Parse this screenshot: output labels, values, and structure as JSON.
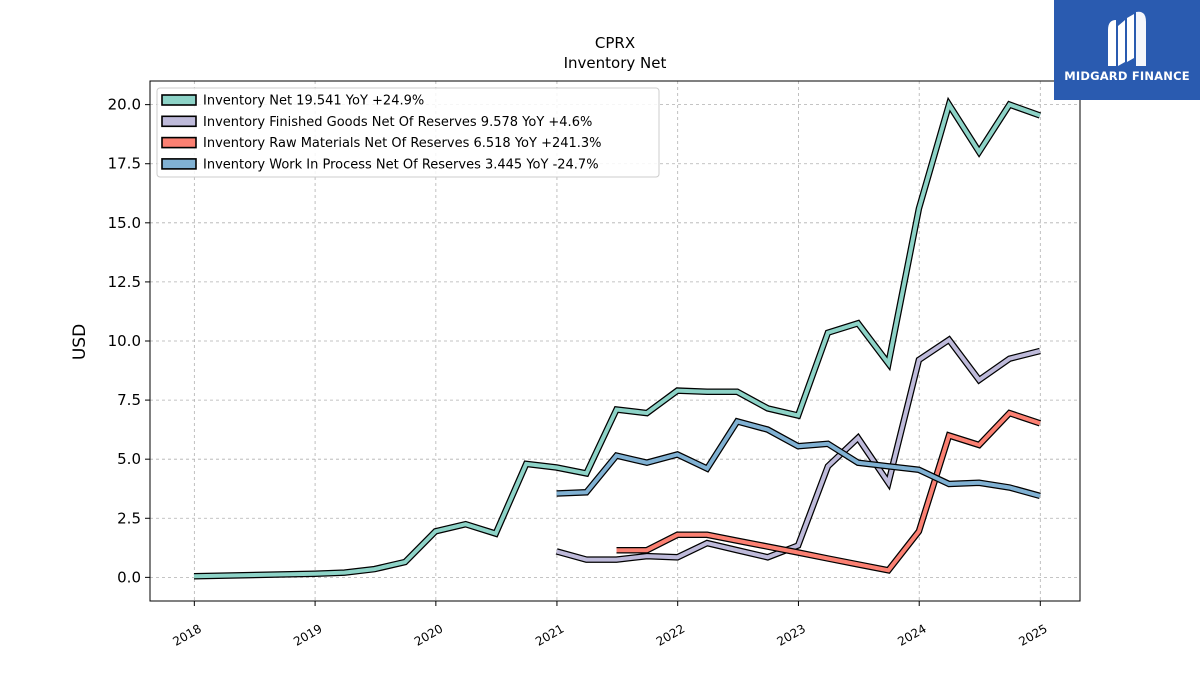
{
  "chart_data": {
    "type": "line",
    "title": "CPRX",
    "subtitle": "Inventory Net",
    "xlabel": "",
    "ylabel": "USD",
    "xlim": [
      "2017-08-20",
      "2025-05-01"
    ],
    "ylim": [
      -1.0,
      21.0
    ],
    "x_ticks": [
      "2018",
      "2019",
      "2020",
      "2021",
      "2022",
      "2023",
      "2024",
      "2025"
    ],
    "y_ticks": [
      "0.0",
      "2.5",
      "5.0",
      "7.5",
      "10.0",
      "12.5",
      "15.0",
      "17.5",
      "20.0"
    ],
    "grid": true,
    "legend_position": "top-left",
    "series": [
      {
        "name": "Inventory Net  19.541 YoY +24.9%",
        "color": "#8dd3c7",
        "points": [
          [
            "2017-12-31",
            0.05
          ],
          [
            "2018-12-31",
            0.15
          ],
          [
            "2019-03-31",
            0.2
          ],
          [
            "2019-06-30",
            0.35
          ],
          [
            "2019-09-30",
            0.65
          ],
          [
            "2019-12-31",
            1.95
          ],
          [
            "2020-03-31",
            2.25
          ],
          [
            "2020-06-30",
            1.85
          ],
          [
            "2020-09-30",
            4.8
          ],
          [
            "2020-12-31",
            4.65
          ],
          [
            "2021-03-31",
            4.4
          ],
          [
            "2021-06-30",
            7.1
          ],
          [
            "2021-09-30",
            6.95
          ],
          [
            "2021-12-31",
            7.9
          ],
          [
            "2022-03-31",
            7.85
          ],
          [
            "2022-06-30",
            7.85
          ],
          [
            "2022-09-30",
            7.15
          ],
          [
            "2022-12-31",
            6.85
          ],
          [
            "2023-03-31",
            10.35
          ],
          [
            "2023-06-30",
            10.75
          ],
          [
            "2023-09-30",
            9.05
          ],
          [
            "2023-12-31",
            15.6
          ],
          [
            "2024-03-31",
            20.0
          ],
          [
            "2024-06-30",
            18.0
          ],
          [
            "2024-09-30",
            20.0
          ],
          [
            "2024-12-31",
            19.541
          ]
        ]
      },
      {
        "name": "Inventory Finished Goods Net Of Reserves  9.578 YoY +4.6%",
        "color": "#bebada",
        "points": [
          [
            "2020-12-31",
            1.1
          ],
          [
            "2021-03-31",
            0.75
          ],
          [
            "2021-06-30",
            0.75
          ],
          [
            "2021-09-30",
            0.9
          ],
          [
            "2021-12-31",
            0.85
          ],
          [
            "2022-03-31",
            1.45
          ],
          [
            "2022-06-30",
            1.15
          ],
          [
            "2022-09-30",
            0.85
          ],
          [
            "2022-12-31",
            1.35
          ],
          [
            "2023-03-31",
            4.7
          ],
          [
            "2023-06-30",
            5.9
          ],
          [
            "2023-09-30",
            4.0
          ],
          [
            "2023-12-31",
            9.2
          ],
          [
            "2024-03-31",
            10.05
          ],
          [
            "2024-06-30",
            8.35
          ],
          [
            "2024-09-30",
            9.25
          ],
          [
            "2024-12-31",
            9.578
          ]
        ]
      },
      {
        "name": "Inventory Raw Materials Net Of Reserves  6.518 YoY +241.3%",
        "color": "#fb8072",
        "points": [
          [
            "2021-06-30",
            1.15
          ],
          [
            "2021-09-30",
            1.15
          ],
          [
            "2021-12-31",
            1.8
          ],
          [
            "2022-03-31",
            1.8
          ],
          [
            "2022-06-30",
            1.55
          ],
          [
            "2022-09-30",
            1.3
          ],
          [
            "2022-12-31",
            1.05
          ],
          [
            "2023-03-31",
            0.8
          ],
          [
            "2023-06-30",
            0.55
          ],
          [
            "2023-09-30",
            0.3
          ],
          [
            "2023-12-31",
            1.95
          ],
          [
            "2024-03-31",
            6.0
          ],
          [
            "2024-06-30",
            5.6
          ],
          [
            "2024-09-30",
            6.95
          ],
          [
            "2024-12-31",
            6.518
          ]
        ]
      },
      {
        "name": "Inventory Work In Process Net Of Reserves  3.445 YoY -24.7%",
        "color": "#80b1d3",
        "points": [
          [
            "2020-12-31",
            3.55
          ],
          [
            "2021-03-31",
            3.6
          ],
          [
            "2021-06-30",
            5.15
          ],
          [
            "2021-09-30",
            4.85
          ],
          [
            "2021-12-31",
            5.2
          ],
          [
            "2022-03-31",
            4.6
          ],
          [
            "2022-06-30",
            6.6
          ],
          [
            "2022-09-30",
            6.25
          ],
          [
            "2022-12-31",
            5.55
          ],
          [
            "2023-03-31",
            5.65
          ],
          [
            "2023-06-30",
            4.85
          ],
          [
            "2023-09-30",
            4.7
          ],
          [
            "2023-12-31",
            4.55
          ],
          [
            "2024-03-31",
            3.95
          ],
          [
            "2024-06-30",
            4.0
          ],
          [
            "2024-09-30",
            3.8
          ],
          [
            "2024-12-31",
            3.445
          ]
        ]
      }
    ]
  },
  "logo": {
    "text": "MIDGARD FINANCE",
    "icon": "midgard-logo-icon",
    "background": "#2a5bb0"
  }
}
